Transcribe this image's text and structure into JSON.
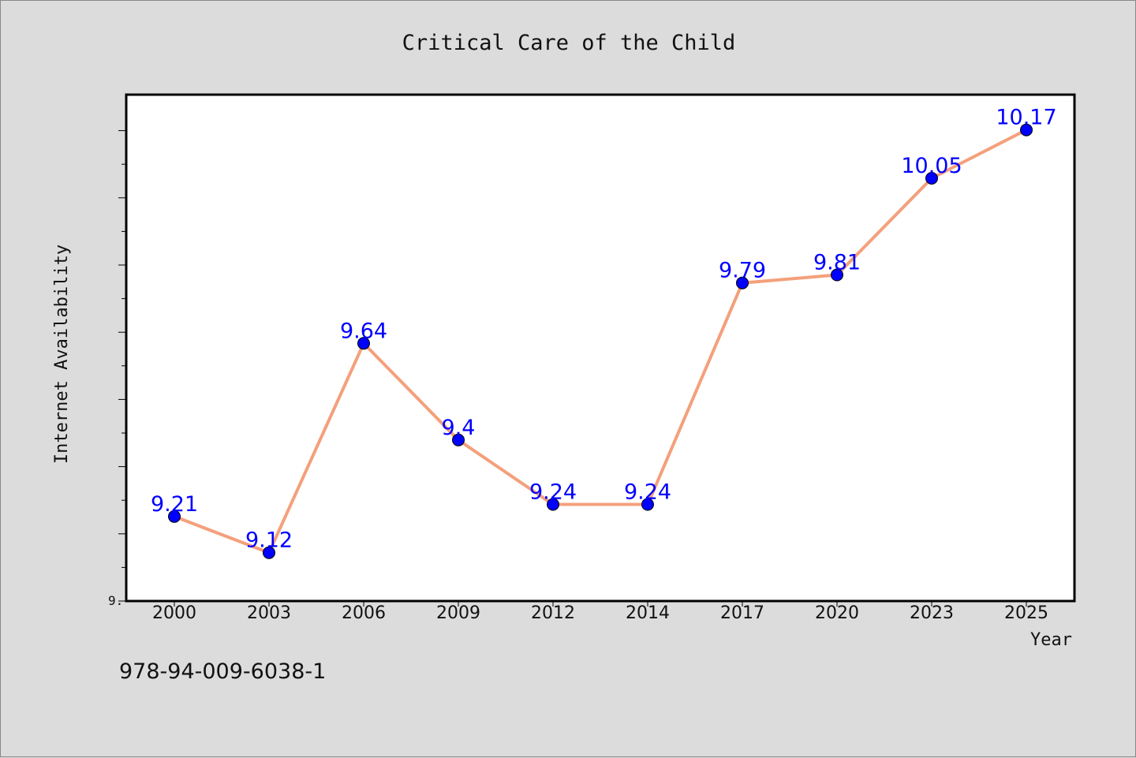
{
  "chart_data": {
    "type": "line",
    "title": "Critical Care of the Child",
    "xlabel": "Year",
    "ylabel": "Internet Availability",
    "categories": [
      "2000",
      "2003",
      "2006",
      "2009",
      "2012",
      "2014",
      "2017",
      "2020",
      "2023",
      "2025"
    ],
    "series": [
      {
        "values": [
          9.21,
          9.12,
          9.64,
          9.4,
          9.24,
          9.24,
          9.79,
          9.81,
          10.05,
          10.17
        ]
      }
    ],
    "data_labels": [
      "9.21",
      "9.12",
      "9.64",
      "9.4",
      "9.24",
      "9.24",
      "9.79",
      "9.81",
      "10.05",
      "10.17"
    ],
    "y_tick_label": "9.",
    "ylim": [
      9.0,
      10.5
    ],
    "grid": false,
    "line_color": "#f4a07c",
    "marker_color": "#0000ff",
    "label_color": "#0000ff",
    "background_color": "#dcdcdc",
    "plot_background": "#ffffff"
  },
  "footer": {
    "code": "978-94-009-6038-1"
  }
}
